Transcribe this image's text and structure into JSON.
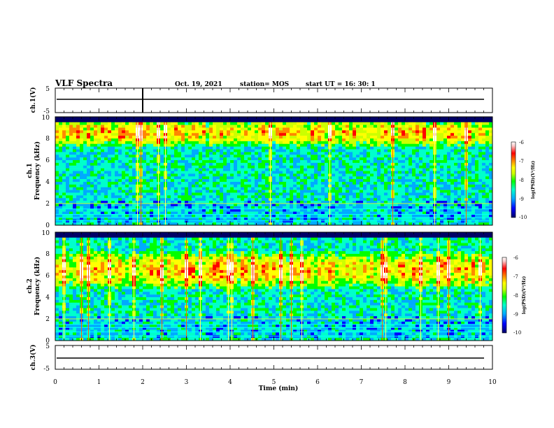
{
  "header": {
    "title": "VLF Spectra",
    "date": "Oct. 19, 2021",
    "station": "station= MOS",
    "start": "start  UT =   16: 30: 1"
  },
  "colors": {
    "spectrum_scale": [
      "#000066",
      "#0000ff",
      "#00aaff",
      "#00ffcc",
      "#00ff00",
      "#ccff00",
      "#ffff00",
      "#ff8800",
      "#ff0000",
      "#ffcccc",
      "#ffffff"
    ],
    "trace": "#000000",
    "axis": "#000000"
  },
  "chart_data": [
    {
      "type": "line",
      "name": "ch1-waveform",
      "ylabel": "ch.1(V)",
      "ylim": [
        -5,
        5
      ],
      "yticks": [
        "5",
        "-5"
      ],
      "xlim": [
        0,
        10
      ],
      "level": 0
    },
    {
      "type": "heatmap",
      "name": "ch1-spectrogram",
      "ylabel_top": "ch.1",
      "ylabel": "Frequency (kHz)",
      "ylim": [
        0,
        10
      ],
      "yticks": [
        "0",
        "2",
        "4",
        "6",
        "8",
        "10"
      ],
      "xlim": [
        0,
        10
      ],
      "colorbar": {
        "label": "log(PSD)(V²/Hz)",
        "range": [
          -10,
          -6
        ],
        "ticks": [
          "-6",
          "-7",
          "-8",
          "-9",
          "-10"
        ]
      },
      "peak_band_khz": [
        8,
        9
      ],
      "narrowband_lines_khz": [
        0.4,
        0.7,
        1.0,
        1.5,
        2.0
      ]
    },
    {
      "type": "heatmap",
      "name": "ch2-spectrogram",
      "ylabel_top": "ch.2",
      "ylabel": "Frequency (kHz)",
      "ylim": [
        0,
        10
      ],
      "yticks": [
        "0",
        "2",
        "4",
        "6",
        "8",
        "10"
      ],
      "xlim": [
        0,
        10
      ],
      "colorbar": {
        "label": "log(PSD)(V²/Hz)",
        "range": [
          -10,
          -6
        ],
        "ticks": [
          "-6",
          "-7",
          "-8",
          "-9",
          "-10"
        ]
      },
      "peak_band_khz": [
        5.5,
        7.5
      ],
      "narrowband_lines_khz": [
        0.4,
        0.8,
        1.2,
        1.5,
        2.0
      ]
    },
    {
      "type": "line",
      "name": "ch3-waveform",
      "ylabel": "ch.3(V)",
      "ylim": [
        -5,
        5
      ],
      "yticks": [
        "5",
        "-5"
      ],
      "xlim": [
        0,
        10
      ],
      "level": 0
    }
  ],
  "x_axis": {
    "label": "Time  (min)",
    "ticks": [
      "0",
      "1",
      "2",
      "3",
      "4",
      "5",
      "6",
      "7",
      "8",
      "9",
      "10"
    ]
  }
}
